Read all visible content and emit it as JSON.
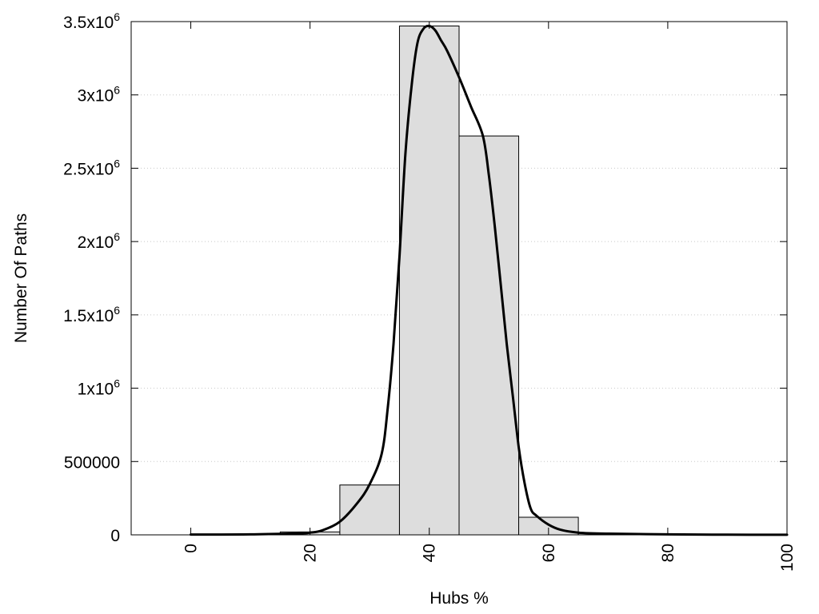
{
  "chart_data": {
    "type": "bar",
    "xlabel": "Hubs %",
    "ylabel": "Number Of Paths",
    "xlim": [
      -10,
      100
    ],
    "ylim": [
      0,
      3500000
    ],
    "grid": true,
    "x_ticks": [
      {
        "value": 0,
        "label": "0"
      },
      {
        "value": 20,
        "label": "20"
      },
      {
        "value": 40,
        "label": "40"
      },
      {
        "value": 60,
        "label": "60"
      },
      {
        "value": 80,
        "label": "80"
      },
      {
        "value": 100,
        "label": "100"
      }
    ],
    "y_ticks": [
      {
        "value": 0,
        "mantissa": "0",
        "exp": ""
      },
      {
        "value": 500000,
        "mantissa": "500000",
        "exp": ""
      },
      {
        "value": 1000000,
        "mantissa": "1x10",
        "exp": "6"
      },
      {
        "value": 1500000,
        "mantissa": "1.5x10",
        "exp": "6"
      },
      {
        "value": 2000000,
        "mantissa": "2x10",
        "exp": "6"
      },
      {
        "value": 2500000,
        "mantissa": "2.5x10",
        "exp": "6"
      },
      {
        "value": 3000000,
        "mantissa": "3x10",
        "exp": "6"
      },
      {
        "value": 3500000,
        "mantissa": "3.5x10",
        "exp": "6"
      }
    ],
    "bars": [
      {
        "x0": 15,
        "x1": 25,
        "value": 20000
      },
      {
        "x0": 25,
        "x1": 35,
        "value": 340000
      },
      {
        "x0": 35,
        "x1": 45,
        "value": 3470000
      },
      {
        "x0": 45,
        "x1": 55,
        "value": 2720000
      },
      {
        "x0": 55,
        "x1": 65,
        "value": 120000
      },
      {
        "x0": 65,
        "x1": 75,
        "value": 10000
      }
    ],
    "curve": [
      [
        0,
        2000
      ],
      [
        10,
        3000
      ],
      [
        18,
        10000
      ],
      [
        20,
        15000
      ],
      [
        22,
        30000
      ],
      [
        25,
        90000
      ],
      [
        28,
        220000
      ],
      [
        30,
        345000
      ],
      [
        32,
        550000
      ],
      [
        33,
        850000
      ],
      [
        34,
        1300000
      ],
      [
        35,
        1900000
      ],
      [
        36,
        2600000
      ],
      [
        37,
        3050000
      ],
      [
        38,
        3350000
      ],
      [
        39,
        3450000
      ],
      [
        40,
        3470000
      ],
      [
        41,
        3440000
      ],
      [
        42,
        3370000
      ],
      [
        43,
        3300000
      ],
      [
        45,
        3120000
      ],
      [
        47,
        2920000
      ],
      [
        49,
        2720000
      ],
      [
        50,
        2450000
      ],
      [
        51,
        2100000
      ],
      [
        52,
        1700000
      ],
      [
        53,
        1300000
      ],
      [
        54,
        950000
      ],
      [
        55,
        600000
      ],
      [
        56,
        350000
      ],
      [
        57,
        180000
      ],
      [
        58,
        130000
      ],
      [
        60,
        70000
      ],
      [
        62,
        35000
      ],
      [
        65,
        15000
      ],
      [
        70,
        8000
      ],
      [
        80,
        3000
      ],
      [
        90,
        1000
      ],
      [
        100,
        500
      ]
    ],
    "colors": {
      "bar_fill": "#dddddd",
      "bar_stroke": "#000000",
      "curve": "#000000",
      "grid": "#c8c8c8"
    }
  }
}
